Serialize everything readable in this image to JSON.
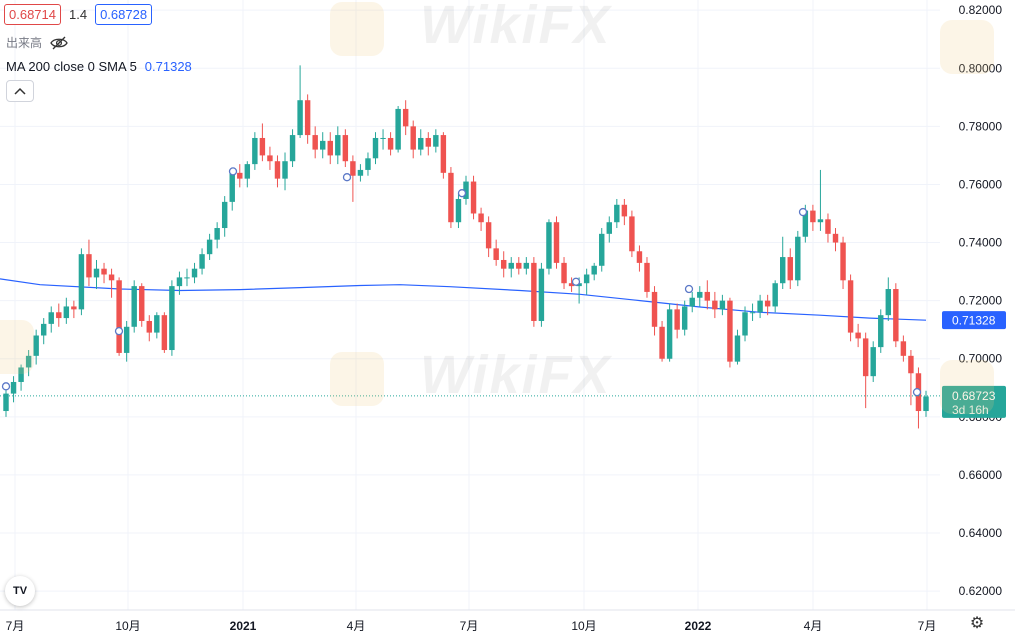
{
  "header": {
    "bid": "0.68714",
    "spread": "1.4",
    "ask": "0.68728",
    "volume_label": "出来高",
    "ma_label": "MA 200 close 0 SMA 5",
    "ma_value": "0.71328"
  },
  "watermark": "WikiFX",
  "colors": {
    "up": "#26a69a",
    "down": "#ef5350",
    "ma": "#2962ff",
    "grid": "#f0f3fa"
  },
  "icons": {
    "eye": "eye-slash-icon",
    "collapse": "chevron-up-icon",
    "settings": "gear-icon",
    "logo": "tradingview-logo-icon"
  },
  "logo_text": "TV",
  "chart_data": {
    "type": "candlestick",
    "y_axis": {
      "ticks": [
        "0.82000",
        "0.80000",
        "0.78000",
        "0.76000",
        "0.74000",
        "0.72000",
        "0.70000",
        "0.68000",
        "0.66000",
        "0.64000",
        "0.62000"
      ],
      "ylim": [
        0.6135,
        0.8235
      ]
    },
    "x_axis": {
      "ticks": [
        "7月",
        "10月",
        "2021",
        "4月",
        "7月",
        "10月",
        "2022",
        "4月",
        "7月"
      ]
    },
    "ma_label_value": "0.71328",
    "last_price": "0.68723",
    "countdown": "3d 16h",
    "ma200": [
      [
        0,
        0.7275
      ],
      [
        40,
        0.7255
      ],
      [
        120,
        0.724
      ],
      [
        180,
        0.7235
      ],
      [
        240,
        0.7238
      ],
      [
        300,
        0.7245
      ],
      [
        360,
        0.7252
      ],
      [
        400,
        0.7255
      ],
      [
        450,
        0.7248
      ],
      [
        520,
        0.7235
      ],
      [
        580,
        0.7222
      ],
      [
        640,
        0.72
      ],
      [
        700,
        0.7178
      ],
      [
        760,
        0.716
      ],
      [
        820,
        0.715
      ],
      [
        870,
        0.714
      ],
      [
        926,
        0.71328
      ]
    ],
    "candles": [
      [
        0.682,
        0.688,
        0.68,
        0.69
      ],
      [
        0.688,
        0.692,
        0.685,
        0.694
      ],
      [
        0.692,
        0.697,
        0.689,
        0.698
      ],
      [
        0.697,
        0.701,
        0.694,
        0.703
      ],
      [
        0.701,
        0.708,
        0.698,
        0.71
      ],
      [
        0.708,
        0.712,
        0.705,
        0.714
      ],
      [
        0.712,
        0.716,
        0.709,
        0.718
      ],
      [
        0.716,
        0.714,
        0.711,
        0.719
      ],
      [
        0.714,
        0.718,
        0.712,
        0.721
      ],
      [
        0.718,
        0.717,
        0.714,
        0.72
      ],
      [
        0.717,
        0.736,
        0.715,
        0.738
      ],
      [
        0.736,
        0.728,
        0.725,
        0.741
      ],
      [
        0.728,
        0.731,
        0.724,
        0.734
      ],
      [
        0.731,
        0.729,
        0.726,
        0.733
      ],
      [
        0.729,
        0.727,
        0.721,
        0.731
      ],
      [
        0.727,
        0.702,
        0.701,
        0.728
      ],
      [
        0.702,
        0.711,
        0.699,
        0.713
      ],
      [
        0.711,
        0.725,
        0.709,
        0.727
      ],
      [
        0.725,
        0.713,
        0.711,
        0.726
      ],
      [
        0.713,
        0.709,
        0.706,
        0.715
      ],
      [
        0.709,
        0.715,
        0.707,
        0.716
      ],
      [
        0.715,
        0.703,
        0.702,
        0.716
      ],
      [
        0.703,
        0.725,
        0.701,
        0.727
      ],
      [
        0.725,
        0.728,
        0.722,
        0.73
      ],
      [
        0.728,
        0.728,
        0.725,
        0.731
      ],
      [
        0.728,
        0.731,
        0.726,
        0.733
      ],
      [
        0.731,
        0.736,
        0.729,
        0.738
      ],
      [
        0.736,
        0.741,
        0.734,
        0.743
      ],
      [
        0.741,
        0.745,
        0.738,
        0.747
      ],
      [
        0.745,
        0.754,
        0.742,
        0.756
      ],
      [
        0.754,
        0.764,
        0.751,
        0.765
      ],
      [
        0.764,
        0.762,
        0.759,
        0.767
      ],
      [
        0.762,
        0.767,
        0.759,
        0.768
      ],
      [
        0.767,
        0.776,
        0.765,
        0.778
      ],
      [
        0.776,
        0.77,
        0.768,
        0.781
      ],
      [
        0.77,
        0.768,
        0.765,
        0.773
      ],
      [
        0.768,
        0.762,
        0.759,
        0.77
      ],
      [
        0.762,
        0.768,
        0.758,
        0.771
      ],
      [
        0.768,
        0.777,
        0.766,
        0.779
      ],
      [
        0.777,
        0.789,
        0.776,
        0.801
      ],
      [
        0.789,
        0.777,
        0.774,
        0.791
      ],
      [
        0.777,
        0.772,
        0.769,
        0.78
      ],
      [
        0.772,
        0.775,
        0.769,
        0.778
      ],
      [
        0.775,
        0.77,
        0.767,
        0.778
      ],
      [
        0.77,
        0.777,
        0.767,
        0.78
      ],
      [
        0.777,
        0.768,
        0.766,
        0.779
      ],
      [
        0.768,
        0.763,
        0.754,
        0.77
      ],
      [
        0.763,
        0.765,
        0.761,
        0.767
      ],
      [
        0.765,
        0.769,
        0.763,
        0.771
      ],
      [
        0.769,
        0.776,
        0.767,
        0.778
      ],
      [
        0.776,
        0.776,
        0.772,
        0.779
      ],
      [
        0.776,
        0.772,
        0.77,
        0.778
      ],
      [
        0.772,
        0.786,
        0.771,
        0.787
      ],
      [
        0.786,
        0.78,
        0.777,
        0.789
      ],
      [
        0.78,
        0.772,
        0.769,
        0.782
      ],
      [
        0.772,
        0.776,
        0.77,
        0.779
      ],
      [
        0.776,
        0.773,
        0.77,
        0.778
      ],
      [
        0.773,
        0.777,
        0.771,
        0.779
      ],
      [
        0.777,
        0.764,
        0.762,
        0.778
      ],
      [
        0.764,
        0.747,
        0.745,
        0.766
      ],
      [
        0.747,
        0.755,
        0.745,
        0.757
      ],
      [
        0.755,
        0.761,
        0.753,
        0.763
      ],
      [
        0.761,
        0.75,
        0.748,
        0.763
      ],
      [
        0.75,
        0.747,
        0.744,
        0.752
      ],
      [
        0.747,
        0.738,
        0.735,
        0.749
      ],
      [
        0.738,
        0.734,
        0.732,
        0.741
      ],
      [
        0.734,
        0.731,
        0.728,
        0.737
      ],
      [
        0.731,
        0.733,
        0.728,
        0.735
      ],
      [
        0.733,
        0.731,
        0.729,
        0.735
      ],
      [
        0.731,
        0.733,
        0.729,
        0.735
      ],
      [
        0.733,
        0.713,
        0.711,
        0.735
      ],
      [
        0.713,
        0.731,
        0.711,
        0.733
      ],
      [
        0.731,
        0.747,
        0.729,
        0.748
      ],
      [
        0.747,
        0.733,
        0.731,
        0.749
      ],
      [
        0.733,
        0.726,
        0.724,
        0.735
      ],
      [
        0.726,
        0.725,
        0.723,
        0.728
      ],
      [
        0.725,
        0.726,
        0.719,
        0.728
      ],
      [
        0.726,
        0.729,
        0.722,
        0.731
      ],
      [
        0.729,
        0.732,
        0.727,
        0.733
      ],
      [
        0.732,
        0.743,
        0.73,
        0.745
      ],
      [
        0.743,
        0.747,
        0.74,
        0.749
      ],
      [
        0.747,
        0.753,
        0.745,
        0.755
      ],
      [
        0.753,
        0.749,
        0.746,
        0.755
      ],
      [
        0.749,
        0.737,
        0.735,
        0.751
      ],
      [
        0.737,
        0.733,
        0.73,
        0.739
      ],
      [
        0.733,
        0.723,
        0.721,
        0.735
      ],
      [
        0.723,
        0.711,
        0.708,
        0.725
      ],
      [
        0.711,
        0.7,
        0.699,
        0.713
      ],
      [
        0.7,
        0.717,
        0.699,
        0.719
      ],
      [
        0.717,
        0.71,
        0.707,
        0.719
      ],
      [
        0.71,
        0.718,
        0.708,
        0.72
      ],
      [
        0.718,
        0.721,
        0.716,
        0.723
      ],
      [
        0.721,
        0.723,
        0.718,
        0.725
      ],
      [
        0.723,
        0.72,
        0.717,
        0.727
      ],
      [
        0.72,
        0.717,
        0.714,
        0.723
      ],
      [
        0.717,
        0.72,
        0.715,
        0.722
      ],
      [
        0.72,
        0.699,
        0.697,
        0.721
      ],
      [
        0.699,
        0.708,
        0.698,
        0.71
      ],
      [
        0.708,
        0.716,
        0.706,
        0.718
      ],
      [
        0.716,
        0.716,
        0.713,
        0.719
      ],
      [
        0.716,
        0.72,
        0.714,
        0.722
      ],
      [
        0.72,
        0.718,
        0.715,
        0.722
      ],
      [
        0.718,
        0.726,
        0.716,
        0.727
      ],
      [
        0.726,
        0.735,
        0.724,
        0.742
      ],
      [
        0.735,
        0.727,
        0.724,
        0.738
      ],
      [
        0.727,
        0.742,
        0.725,
        0.744
      ],
      [
        0.742,
        0.751,
        0.74,
        0.753
      ],
      [
        0.751,
        0.747,
        0.744,
        0.753
      ],
      [
        0.747,
        0.748,
        0.744,
        0.765
      ],
      [
        0.748,
        0.743,
        0.74,
        0.75
      ],
      [
        0.743,
        0.74,
        0.737,
        0.745
      ],
      [
        0.74,
        0.727,
        0.724,
        0.742
      ],
      [
        0.727,
        0.709,
        0.706,
        0.729
      ],
      [
        0.709,
        0.707,
        0.704,
        0.712
      ],
      [
        0.707,
        0.694,
        0.683,
        0.709
      ],
      [
        0.694,
        0.704,
        0.692,
        0.706
      ],
      [
        0.704,
        0.715,
        0.702,
        0.717
      ],
      [
        0.715,
        0.724,
        0.713,
        0.728
      ],
      [
        0.724,
        0.706,
        0.704,
        0.726
      ],
      [
        0.706,
        0.701,
        0.699,
        0.708
      ],
      [
        0.701,
        0.695,
        0.684,
        0.703
      ],
      [
        0.695,
        0.682,
        0.676,
        0.697
      ],
      [
        0.682,
        0.687,
        0.68,
        0.689
      ]
    ]
  }
}
